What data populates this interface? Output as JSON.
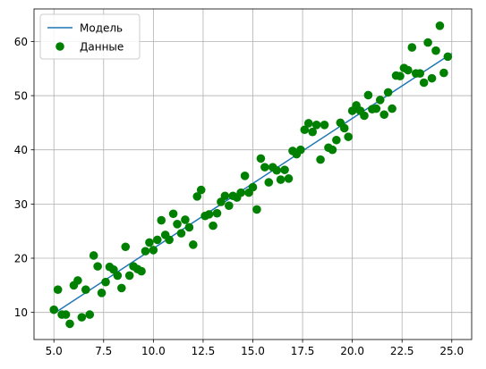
{
  "chart_data": {
    "type": "scatter",
    "title": "",
    "xlabel": "",
    "ylabel": "",
    "xlim": [
      4.0,
      26.0
    ],
    "ylim": [
      5.0,
      66.0
    ],
    "xticks": [
      5.0,
      7.5,
      10.0,
      12.5,
      15.0,
      17.5,
      20.0,
      22.5,
      25.0
    ],
    "xtick_labels": [
      "5.0",
      "7.5",
      "10.0",
      "12.5",
      "15.0",
      "17.5",
      "20.0",
      "22.5",
      "25.0"
    ],
    "yticks": [
      10,
      20,
      30,
      40,
      50,
      60
    ],
    "ytick_labels": [
      "10",
      "20",
      "30",
      "40",
      "50",
      "60"
    ],
    "grid": true,
    "legend": {
      "placement": "top-left",
      "entries": [
        "Модель",
        "Данные"
      ]
    },
    "series": [
      {
        "name": "Модель",
        "kind": "line",
        "color": "#1f77b4",
        "x": [
          5.0,
          25.0
        ],
        "y": [
          9.8,
          57.8
        ]
      },
      {
        "name": "Данные",
        "kind": "scatter",
        "color": "#008000",
        "points": [
          [
            5.0,
            10.5
          ],
          [
            5.2,
            14.2
          ],
          [
            5.4,
            9.6
          ],
          [
            5.6,
            9.6
          ],
          [
            5.8,
            7.9
          ],
          [
            6.0,
            15.0
          ],
          [
            6.2,
            15.9
          ],
          [
            6.4,
            9.1
          ],
          [
            6.6,
            14.2
          ],
          [
            6.8,
            9.6
          ],
          [
            7.0,
            20.5
          ],
          [
            7.2,
            18.5
          ],
          [
            7.4,
            13.6
          ],
          [
            7.6,
            15.6
          ],
          [
            7.8,
            18.4
          ],
          [
            8.0,
            17.9
          ],
          [
            8.2,
            16.8
          ],
          [
            8.4,
            14.5
          ],
          [
            8.6,
            22.1
          ],
          [
            8.8,
            16.8
          ],
          [
            9.0,
            18.5
          ],
          [
            9.2,
            18.0
          ],
          [
            9.4,
            17.6
          ],
          [
            9.6,
            21.3
          ],
          [
            9.8,
            22.9
          ],
          [
            10.0,
            21.5
          ],
          [
            10.2,
            23.4
          ],
          [
            10.4,
            27.0
          ],
          [
            10.6,
            24.3
          ],
          [
            10.8,
            23.4
          ],
          [
            11.0,
            28.2
          ],
          [
            11.2,
            26.3
          ],
          [
            11.4,
            24.6
          ],
          [
            11.6,
            27.1
          ],
          [
            11.8,
            25.7
          ],
          [
            12.0,
            22.5
          ],
          [
            12.2,
            31.4
          ],
          [
            12.4,
            32.6
          ],
          [
            12.6,
            27.8
          ],
          [
            12.8,
            28.1
          ],
          [
            13.0,
            26.0
          ],
          [
            13.2,
            28.3
          ],
          [
            13.4,
            30.4
          ],
          [
            13.6,
            31.5
          ],
          [
            13.8,
            29.7
          ],
          [
            14.0,
            31.5
          ],
          [
            14.2,
            31.2
          ],
          [
            14.4,
            32.1
          ],
          [
            14.6,
            35.2
          ],
          [
            14.8,
            32.1
          ],
          [
            15.0,
            33.1
          ],
          [
            15.2,
            29.0
          ],
          [
            15.4,
            38.4
          ],
          [
            15.6,
            36.8
          ],
          [
            15.8,
            34.0
          ],
          [
            16.0,
            36.8
          ],
          [
            16.2,
            36.2
          ],
          [
            16.4,
            34.5
          ],
          [
            16.6,
            36.3
          ],
          [
            16.8,
            34.7
          ],
          [
            17.0,
            39.8
          ],
          [
            17.2,
            39.2
          ],
          [
            17.4,
            40.0
          ],
          [
            17.6,
            43.7
          ],
          [
            17.8,
            44.9
          ],
          [
            18.0,
            43.3
          ],
          [
            18.2,
            44.6
          ],
          [
            18.4,
            38.2
          ],
          [
            18.6,
            44.6
          ],
          [
            18.8,
            40.4
          ],
          [
            19.0,
            40.0
          ],
          [
            19.2,
            41.8
          ],
          [
            19.4,
            45.0
          ],
          [
            19.6,
            44.0
          ],
          [
            19.8,
            42.4
          ],
          [
            20.0,
            47.2
          ],
          [
            20.2,
            48.2
          ],
          [
            20.4,
            47.2
          ],
          [
            20.6,
            46.3
          ],
          [
            20.8,
            50.1
          ],
          [
            21.0,
            47.5
          ],
          [
            21.2,
            47.6
          ],
          [
            21.4,
            49.2
          ],
          [
            21.6,
            46.5
          ],
          [
            21.8,
            50.6
          ],
          [
            22.0,
            47.6
          ],
          [
            22.2,
            53.7
          ],
          [
            22.4,
            53.6
          ],
          [
            22.6,
            55.1
          ],
          [
            22.8,
            54.7
          ],
          [
            23.0,
            58.9
          ],
          [
            23.2,
            54.1
          ],
          [
            23.4,
            54.1
          ],
          [
            23.6,
            52.4
          ],
          [
            23.8,
            59.8
          ],
          [
            24.0,
            53.2
          ],
          [
            24.2,
            58.3
          ],
          [
            24.4,
            62.9
          ],
          [
            24.6,
            54.2
          ],
          [
            24.8,
            57.2
          ]
        ]
      }
    ]
  }
}
